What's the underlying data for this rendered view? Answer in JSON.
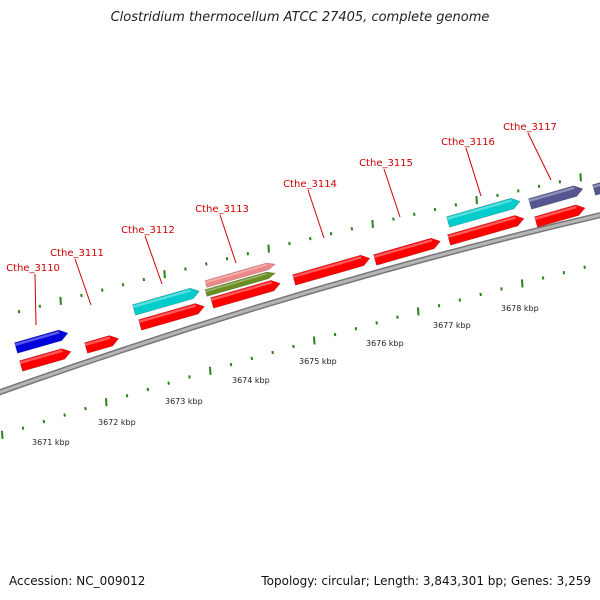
{
  "title": "Clostridium thermocellum ATCC 27405, complete genome",
  "footer": {
    "accession": "Accession: NC_009012",
    "summary": "Topology: circular; Length: 3,843,301 bp; Genes: 3,259"
  },
  "scale": {
    "unit": "kbp",
    "ticks": [
      "3671 kbp",
      "3672 kbp",
      "3673 kbp",
      "3674 kbp",
      "3675 kbp",
      "3676 kbp",
      "3677 kbp",
      "3678 kbp"
    ]
  },
  "colors": {
    "cds": "#ff0000",
    "blue": "#0000dd",
    "cyan": "#00cccc",
    "purple": "#55558f",
    "pink": "#ee8888",
    "olive": "#6b8e23",
    "label": "#cc0000",
    "tick": "#2e7d1e",
    "backbone": "#999999"
  },
  "genes": [
    {
      "label": "Cthe_3110"
    },
    {
      "label": "Cthe_3111"
    },
    {
      "label": "Cthe_3112"
    },
    {
      "label": "Cthe_3113"
    },
    {
      "label": "Cthe_3114"
    },
    {
      "label": "Cthe_3115"
    },
    {
      "label": "Cthe_3116"
    },
    {
      "label": "Cthe_3117"
    }
  ]
}
